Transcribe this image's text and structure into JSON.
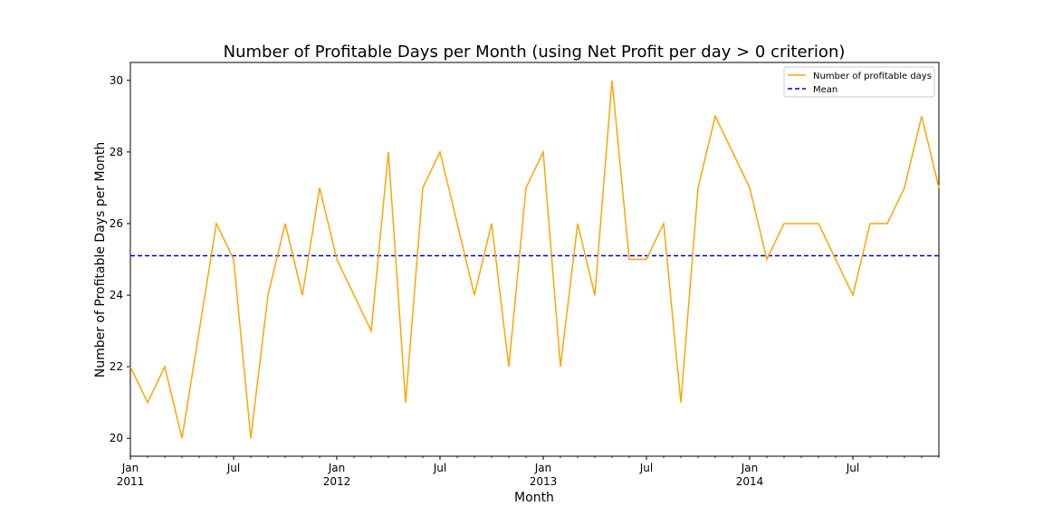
{
  "chart_data": {
    "type": "line",
    "title": "Number of Profitable Days per Month (using Net Profit per day > 0 criterion)",
    "xlabel": "Month",
    "ylabel": "Number of Profitable Days per Month",
    "x": [
      "2011-01",
      "2011-02",
      "2011-03",
      "2011-04",
      "2011-05",
      "2011-06",
      "2011-07",
      "2011-08",
      "2011-09",
      "2011-10",
      "2011-11",
      "2011-12",
      "2012-01",
      "2012-02",
      "2012-03",
      "2012-04",
      "2012-05",
      "2012-06",
      "2012-07",
      "2012-08",
      "2012-09",
      "2012-10",
      "2012-11",
      "2012-12",
      "2013-01",
      "2013-02",
      "2013-03",
      "2013-04",
      "2013-05",
      "2013-06",
      "2013-07",
      "2013-08",
      "2013-09",
      "2013-10",
      "2013-11",
      "2013-12",
      "2014-01",
      "2014-02",
      "2014-03",
      "2014-04",
      "2014-05",
      "2014-06",
      "2014-07",
      "2014-08",
      "2014-09",
      "2014-10",
      "2014-11",
      "2014-12"
    ],
    "series": [
      {
        "name": "Number of profitable days",
        "color": "#ffa500",
        "values": [
          22,
          21,
          22,
          20,
          23,
          26,
          25,
          20,
          24,
          26,
          24,
          27,
          25,
          24,
          23,
          28,
          21,
          27,
          28,
          26,
          24,
          26,
          22,
          27,
          28,
          22,
          26,
          24,
          30,
          25,
          25,
          26,
          21,
          27,
          29,
          28,
          27,
          25,
          26,
          26,
          26,
          25,
          24,
          26,
          26,
          27,
          29,
          27
        ]
      },
      {
        "name": "Mean",
        "color": "#0000cd",
        "style": "dashed",
        "value": 25.1
      }
    ],
    "ylim": [
      19.5,
      30.5
    ],
    "y_ticks": [
      "20",
      "22",
      "24",
      "26",
      "28",
      "30"
    ],
    "x_ticks": [
      {
        "x": "2011-01",
        "label": "Jan",
        "year": "2011"
      },
      {
        "x": "2011-07",
        "label": "Jul",
        "year": ""
      },
      {
        "x": "2012-01",
        "label": "Jan",
        "year": "2012"
      },
      {
        "x": "2012-07",
        "label": "Jul",
        "year": ""
      },
      {
        "x": "2013-01",
        "label": "Jan",
        "year": "2013"
      },
      {
        "x": "2013-07",
        "label": "Jul",
        "year": ""
      },
      {
        "x": "2014-01",
        "label": "Jan",
        "year": "2014"
      },
      {
        "x": "2014-07",
        "label": "Jul",
        "year": ""
      }
    ],
    "grid": false,
    "legend_position": "top-right"
  }
}
